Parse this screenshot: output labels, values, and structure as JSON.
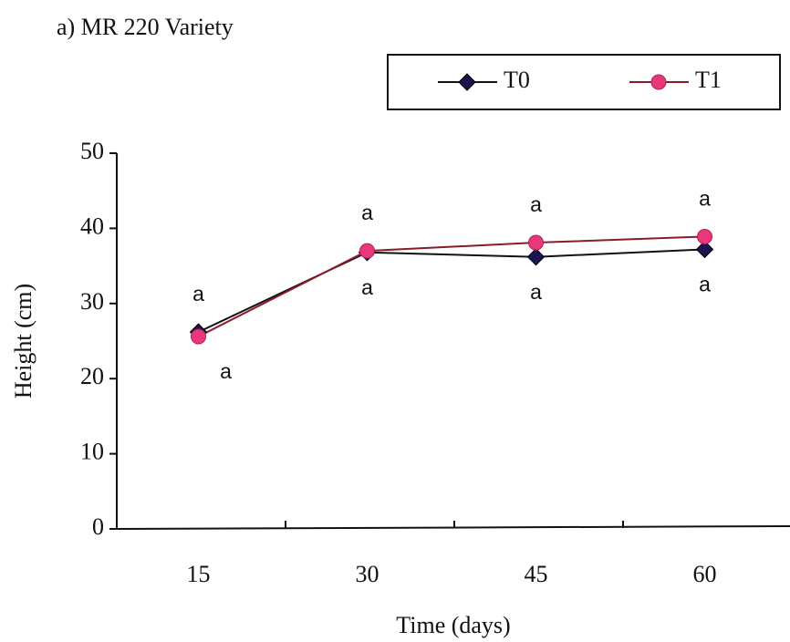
{
  "chart_data": {
    "type": "line",
    "title": "a) MR 220 Variety",
    "x_label": "Time (days)",
    "y_label": "Height (cm)",
    "categories": [
      "15",
      "30",
      "45",
      "60"
    ],
    "series": [
      {
        "name": "T0",
        "color": "#1c1450",
        "line_color": "#111111",
        "marker": "diamond",
        "values": [
          26.2,
          36.8,
          36.2,
          37.2
        ],
        "letters": [
          "a",
          "a",
          "a",
          "a"
        ]
      },
      {
        "name": "T1",
        "color": "#e8387a",
        "line_color": "#8b1a2a",
        "marker": "circle",
        "values": [
          25.6,
          37.0,
          38.1,
          38.9
        ],
        "letters": [
          "a",
          "a",
          "a",
          "a"
        ]
      }
    ],
    "ylim": [
      0,
      50
    ],
    "yticks": [
      0,
      10,
      20,
      30,
      40,
      50
    ],
    "grid": false,
    "legend": "top-right"
  }
}
